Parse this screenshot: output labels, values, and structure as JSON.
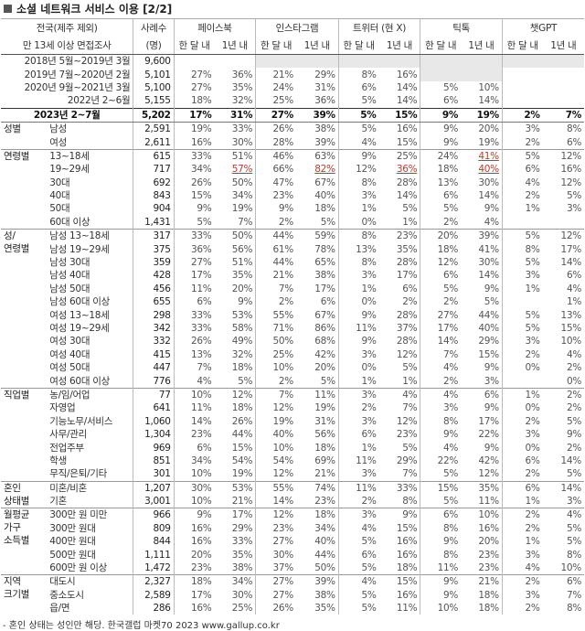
{
  "title": "소셜 네트워크 서비스 이용 [2/2]",
  "header": {
    "col0_line1": "전국(제주 제외)",
    "col0_line2": "만 13세 이상 면접조사",
    "sample_line1": "사례수",
    "sample_line2": "(명)",
    "platforms": [
      "페이스북",
      "인스타그램",
      "트위터 (현 X)",
      "틱톡",
      "챗GPT"
    ],
    "sub": [
      "한 달 내",
      "1년 내"
    ]
  },
  "period_rows": [
    {
      "label": "2018년 5월~2019년 3월",
      "n": "9,600",
      "v": [
        "",
        "",
        "",
        "",
        "",
        "",
        "",
        "",
        "",
        ""
      ],
      "gray": [
        2,
        3,
        4,
        5,
        6,
        7,
        8,
        9
      ]
    },
    {
      "label": "2019년 7월~2020년 2월",
      "n": "5,101",
      "v": [
        "27%",
        "36%",
        "21%",
        "29%",
        "8%",
        "16%",
        "",
        "",
        "",
        ""
      ],
      "gray": [
        6,
        7
      ]
    },
    {
      "label": "2020년 9월~2021년 3월",
      "n": "5,100",
      "v": [
        "27%",
        "35%",
        "24%",
        "31%",
        "6%",
        "14%",
        "5%",
        "10%",
        "",
        ""
      ],
      "gray": []
    },
    {
      "label": "2022년 2~6월",
      "n": "5,155",
      "v": [
        "18%",
        "32%",
        "25%",
        "36%",
        "5%",
        "14%",
        "6%",
        "14%",
        "",
        ""
      ],
      "gray": []
    }
  ],
  "total": {
    "label": "2023년 2~7월",
    "n": "5,202",
    "v": [
      "17%",
      "31%",
      "27%",
      "39%",
      "5%",
      "15%",
      "9%",
      "19%",
      "2%",
      "7%"
    ]
  },
  "groups": [
    {
      "name": [
        "성별"
      ],
      "rows": [
        {
          "label": "남성",
          "n": "2,591",
          "v": [
            "19%",
            "33%",
            "26%",
            "38%",
            "5%",
            "16%",
            "9%",
            "20%",
            "3%",
            "8%"
          ]
        },
        {
          "label": "여성",
          "n": "2,611",
          "v": [
            "16%",
            "30%",
            "28%",
            "39%",
            "4%",
            "15%",
            "9%",
            "19%",
            "2%",
            "6%"
          ]
        }
      ]
    },
    {
      "name": [
        "연령별"
      ],
      "rows": [
        {
          "label": "13~18세",
          "n": "615",
          "v": [
            "33%",
            "51%",
            "46%",
            "63%",
            "9%",
            "25%",
            "24%",
            "41%",
            "5%",
            "12%"
          ],
          "red": [
            7
          ]
        },
        {
          "label": "19~29세",
          "n": "717",
          "v": [
            "34%",
            "57%",
            "66%",
            "82%",
            "12%",
            "36%",
            "18%",
            "40%",
            "6%",
            "16%"
          ],
          "red": [
            1,
            3,
            5,
            7
          ]
        },
        {
          "label": "30대",
          "n": "692",
          "v": [
            "26%",
            "50%",
            "47%",
            "67%",
            "8%",
            "28%",
            "13%",
            "30%",
            "4%",
            "12%"
          ]
        },
        {
          "label": "40대",
          "n": "843",
          "v": [
            "15%",
            "34%",
            "23%",
            "40%",
            "3%",
            "14%",
            "6%",
            "14%",
            "2%",
            "5%"
          ]
        },
        {
          "label": "50대",
          "n": "904",
          "v": [
            "9%",
            "19%",
            "9%",
            "18%",
            "1%",
            "5%",
            "5%",
            "9%",
            "1%",
            "3%"
          ]
        },
        {
          "label": "60대 이상",
          "n": "1,431",
          "v": [
            "5%",
            "7%",
            "2%",
            "5%",
            "0%",
            "1%",
            "2%",
            "4%",
            "",
            ""
          ]
        }
      ]
    },
    {
      "name": [
        "성/",
        "연령별"
      ],
      "rows": [
        {
          "label": "남성 13~18세",
          "n": "317",
          "v": [
            "33%",
            "50%",
            "44%",
            "59%",
            "8%",
            "23%",
            "20%",
            "39%",
            "5%",
            "12%"
          ]
        },
        {
          "label": "남성 19~29세",
          "n": "375",
          "v": [
            "36%",
            "56%",
            "61%",
            "78%",
            "13%",
            "35%",
            "18%",
            "41%",
            "8%",
            "17%"
          ]
        },
        {
          "label": "남성 30대",
          "n": "359",
          "v": [
            "27%",
            "51%",
            "44%",
            "65%",
            "8%",
            "28%",
            "12%",
            "30%",
            "5%",
            "14%"
          ]
        },
        {
          "label": "남성 40대",
          "n": "428",
          "v": [
            "17%",
            "35%",
            "21%",
            "38%",
            "3%",
            "17%",
            "6%",
            "14%",
            "3%",
            "6%"
          ]
        },
        {
          "label": "남성 50대",
          "n": "456",
          "v": [
            "11%",
            "20%",
            "7%",
            "17%",
            "1%",
            "6%",
            "5%",
            "9%",
            "1%",
            "4%"
          ]
        },
        {
          "label": "남성 60대 이상",
          "n": "655",
          "v": [
            "6%",
            "9%",
            "2%",
            "6%",
            "0%",
            "2%",
            "2%",
            "5%",
            "",
            "1%"
          ]
        },
        {
          "label": "여성 13~18세",
          "n": "298",
          "v": [
            "33%",
            "53%",
            "55%",
            "67%",
            "9%",
            "28%",
            "27%",
            "44%",
            "5%",
            "13%"
          ]
        },
        {
          "label": "여성 19~29세",
          "n": "342",
          "v": [
            "33%",
            "58%",
            "71%",
            "86%",
            "11%",
            "37%",
            "17%",
            "40%",
            "5%",
            "15%"
          ]
        },
        {
          "label": "여성 30대",
          "n": "332",
          "v": [
            "26%",
            "49%",
            "50%",
            "68%",
            "9%",
            "28%",
            "14%",
            "29%",
            "3%",
            "10%"
          ]
        },
        {
          "label": "여성 40대",
          "n": "415",
          "v": [
            "13%",
            "32%",
            "25%",
            "42%",
            "3%",
            "12%",
            "7%",
            "15%",
            "2%",
            "4%"
          ]
        },
        {
          "label": "여성 50대",
          "n": "447",
          "v": [
            "7%",
            "18%",
            "10%",
            "20%",
            "0%",
            "5%",
            "4%",
            "9%",
            "0%",
            "2%"
          ]
        },
        {
          "label": "여성 60대 이상",
          "n": "776",
          "v": [
            "4%",
            "5%",
            "2%",
            "5%",
            "1%",
            "1%",
            "2%",
            "3%",
            "",
            "0%"
          ]
        }
      ]
    },
    {
      "name": [
        "직업별"
      ],
      "rows": [
        {
          "label": "농/임/어업",
          "n": "77",
          "v": [
            "10%",
            "12%",
            "7%",
            "11%",
            "3%",
            "4%",
            "4%",
            "6%",
            "1%",
            "2%"
          ]
        },
        {
          "label": "자영업",
          "n": "641",
          "v": [
            "11%",
            "18%",
            "12%",
            "19%",
            "2%",
            "7%",
            "3%",
            "9%",
            "0%",
            "2%"
          ]
        },
        {
          "label": "기능노무/서비스",
          "n": "1,060",
          "v": [
            "14%",
            "26%",
            "19%",
            "31%",
            "3%",
            "12%",
            "8%",
            "17%",
            "2%",
            "5%"
          ]
        },
        {
          "label": "사무/관리",
          "n": "1,304",
          "v": [
            "23%",
            "44%",
            "40%",
            "56%",
            "6%",
            "23%",
            "9%",
            "22%",
            "3%",
            "9%"
          ]
        },
        {
          "label": "전업주부",
          "n": "969",
          "v": [
            "6%",
            "15%",
            "10%",
            "18%",
            "1%",
            "5%",
            "4%",
            "9%",
            "0%",
            "2%"
          ]
        },
        {
          "label": "학생",
          "n": "851",
          "v": [
            "34%",
            "54%",
            "54%",
            "69%",
            "11%",
            "29%",
            "22%",
            "42%",
            "6%",
            "14%"
          ]
        },
        {
          "label": "무직/은퇴/기타",
          "n": "301",
          "v": [
            "10%",
            "19%",
            "12%",
            "21%",
            "3%",
            "7%",
            "5%",
            "12%",
            "2%",
            "5%"
          ]
        }
      ]
    },
    {
      "name": [
        "혼인",
        "상태별"
      ],
      "rows": [
        {
          "label": "미혼/비혼",
          "n": "1,207",
          "v": [
            "30%",
            "53%",
            "55%",
            "74%",
            "11%",
            "33%",
            "15%",
            "35%",
            "6%",
            "14%"
          ]
        },
        {
          "label": "기혼",
          "n": "3,001",
          "v": [
            "10%",
            "21%",
            "14%",
            "23%",
            "2%",
            "8%",
            "5%",
            "11%",
            "1%",
            "3%"
          ]
        }
      ]
    },
    {
      "name": [
        "월평균",
        "가구",
        "소득별"
      ],
      "rows": [
        {
          "label": "300만 원 미만",
          "n": "966",
          "v": [
            "9%",
            "17%",
            "12%",
            "18%",
            "3%",
            "9%",
            "6%",
            "10%",
            "2%",
            "4%"
          ]
        },
        {
          "label": "300만 원대",
          "n": "809",
          "v": [
            "16%",
            "29%",
            "23%",
            "34%",
            "4%",
            "15%",
            "8%",
            "16%",
            "2%",
            "5%"
          ]
        },
        {
          "label": "400만 원대",
          "n": "844",
          "v": [
            "16%",
            "33%",
            "27%",
            "40%",
            "5%",
            "16%",
            "9%",
            "20%",
            "1%",
            "5%"
          ]
        },
        {
          "label": "500만 원대",
          "n": "1,111",
          "v": [
            "20%",
            "35%",
            "30%",
            "44%",
            "6%",
            "16%",
            "8%",
            "23%",
            "3%",
            "8%"
          ]
        },
        {
          "label": "600만 원 이상",
          "n": "1,472",
          "v": [
            "23%",
            "38%",
            "37%",
            "50%",
            "5%",
            "18%",
            "11%",
            "23%",
            "4%",
            "10%"
          ]
        }
      ]
    },
    {
      "name": [
        "지역",
        "크기별"
      ],
      "rows": [
        {
          "label": "대도시",
          "n": "2,327",
          "v": [
            "18%",
            "34%",
            "27%",
            "39%",
            "4%",
            "15%",
            "9%",
            "21%",
            "2%",
            "6%"
          ]
        },
        {
          "label": "중소도시",
          "n": "2,589",
          "v": [
            "17%",
            "30%",
            "27%",
            "38%",
            "5%",
            "16%",
            "9%",
            "18%",
            "3%",
            "7%"
          ]
        },
        {
          "label": "읍/면",
          "n": "286",
          "v": [
            "16%",
            "25%",
            "26%",
            "35%",
            "5%",
            "11%",
            "10%",
            "18%",
            "2%",
            "8%"
          ]
        }
      ]
    }
  ],
  "footer": "- 혼인 상태는 성인만 해당. 한국갤럽 마켓70 2023 www.gallup.co.kr"
}
